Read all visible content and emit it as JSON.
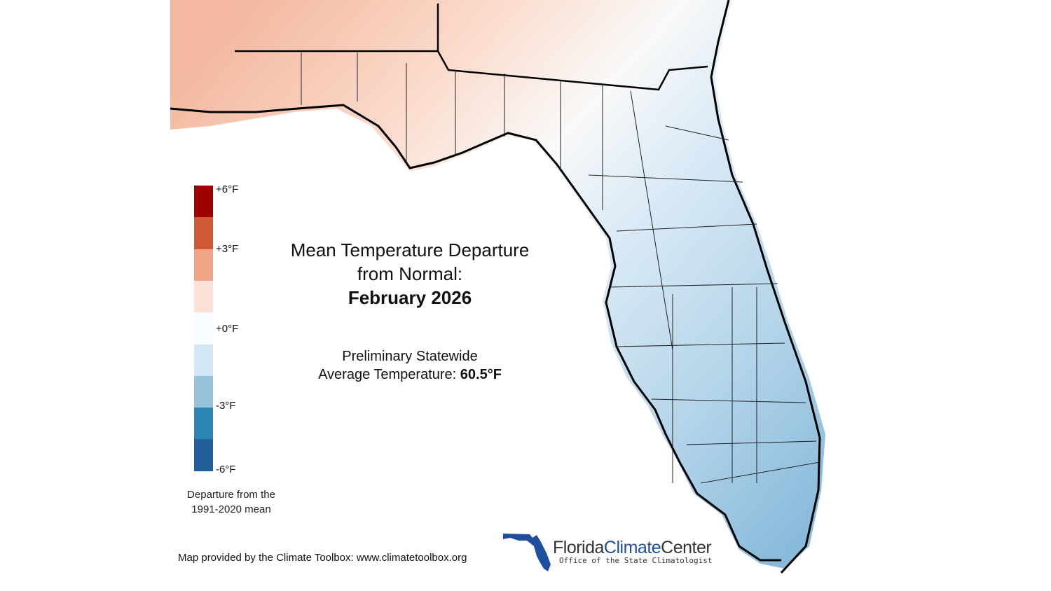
{
  "title": {
    "line1": "Mean Temperature Departure",
    "line2": "from Normal:",
    "period": "February 2026"
  },
  "subtitle": {
    "line1": "Preliminary Statewide",
    "line2_prefix": "Average Temperature: ",
    "value": "60.5°F"
  },
  "legend": {
    "colors": [
      "#9e0000",
      "#d05a35",
      "#f2a585",
      "#fce2d6",
      "#f7fcff",
      "#d1e7f5",
      "#96c2db",
      "#2a87b5",
      "#225d9c"
    ],
    "labels": [
      "+6°F",
      "+3°F",
      "+0°F",
      "-3°F",
      "-6°F"
    ],
    "note_line1": "Departure from the",
    "note_line2": "1991-2020 mean"
  },
  "credit": "Map provided by the Climate Toolbox: www.climatetoolbox.org",
  "logo": {
    "part1": "Florida",
    "part2": "Climate",
    "part3": "Center",
    "tagline": "Office of the State Climatologist",
    "color": "#1f4e9e"
  }
}
